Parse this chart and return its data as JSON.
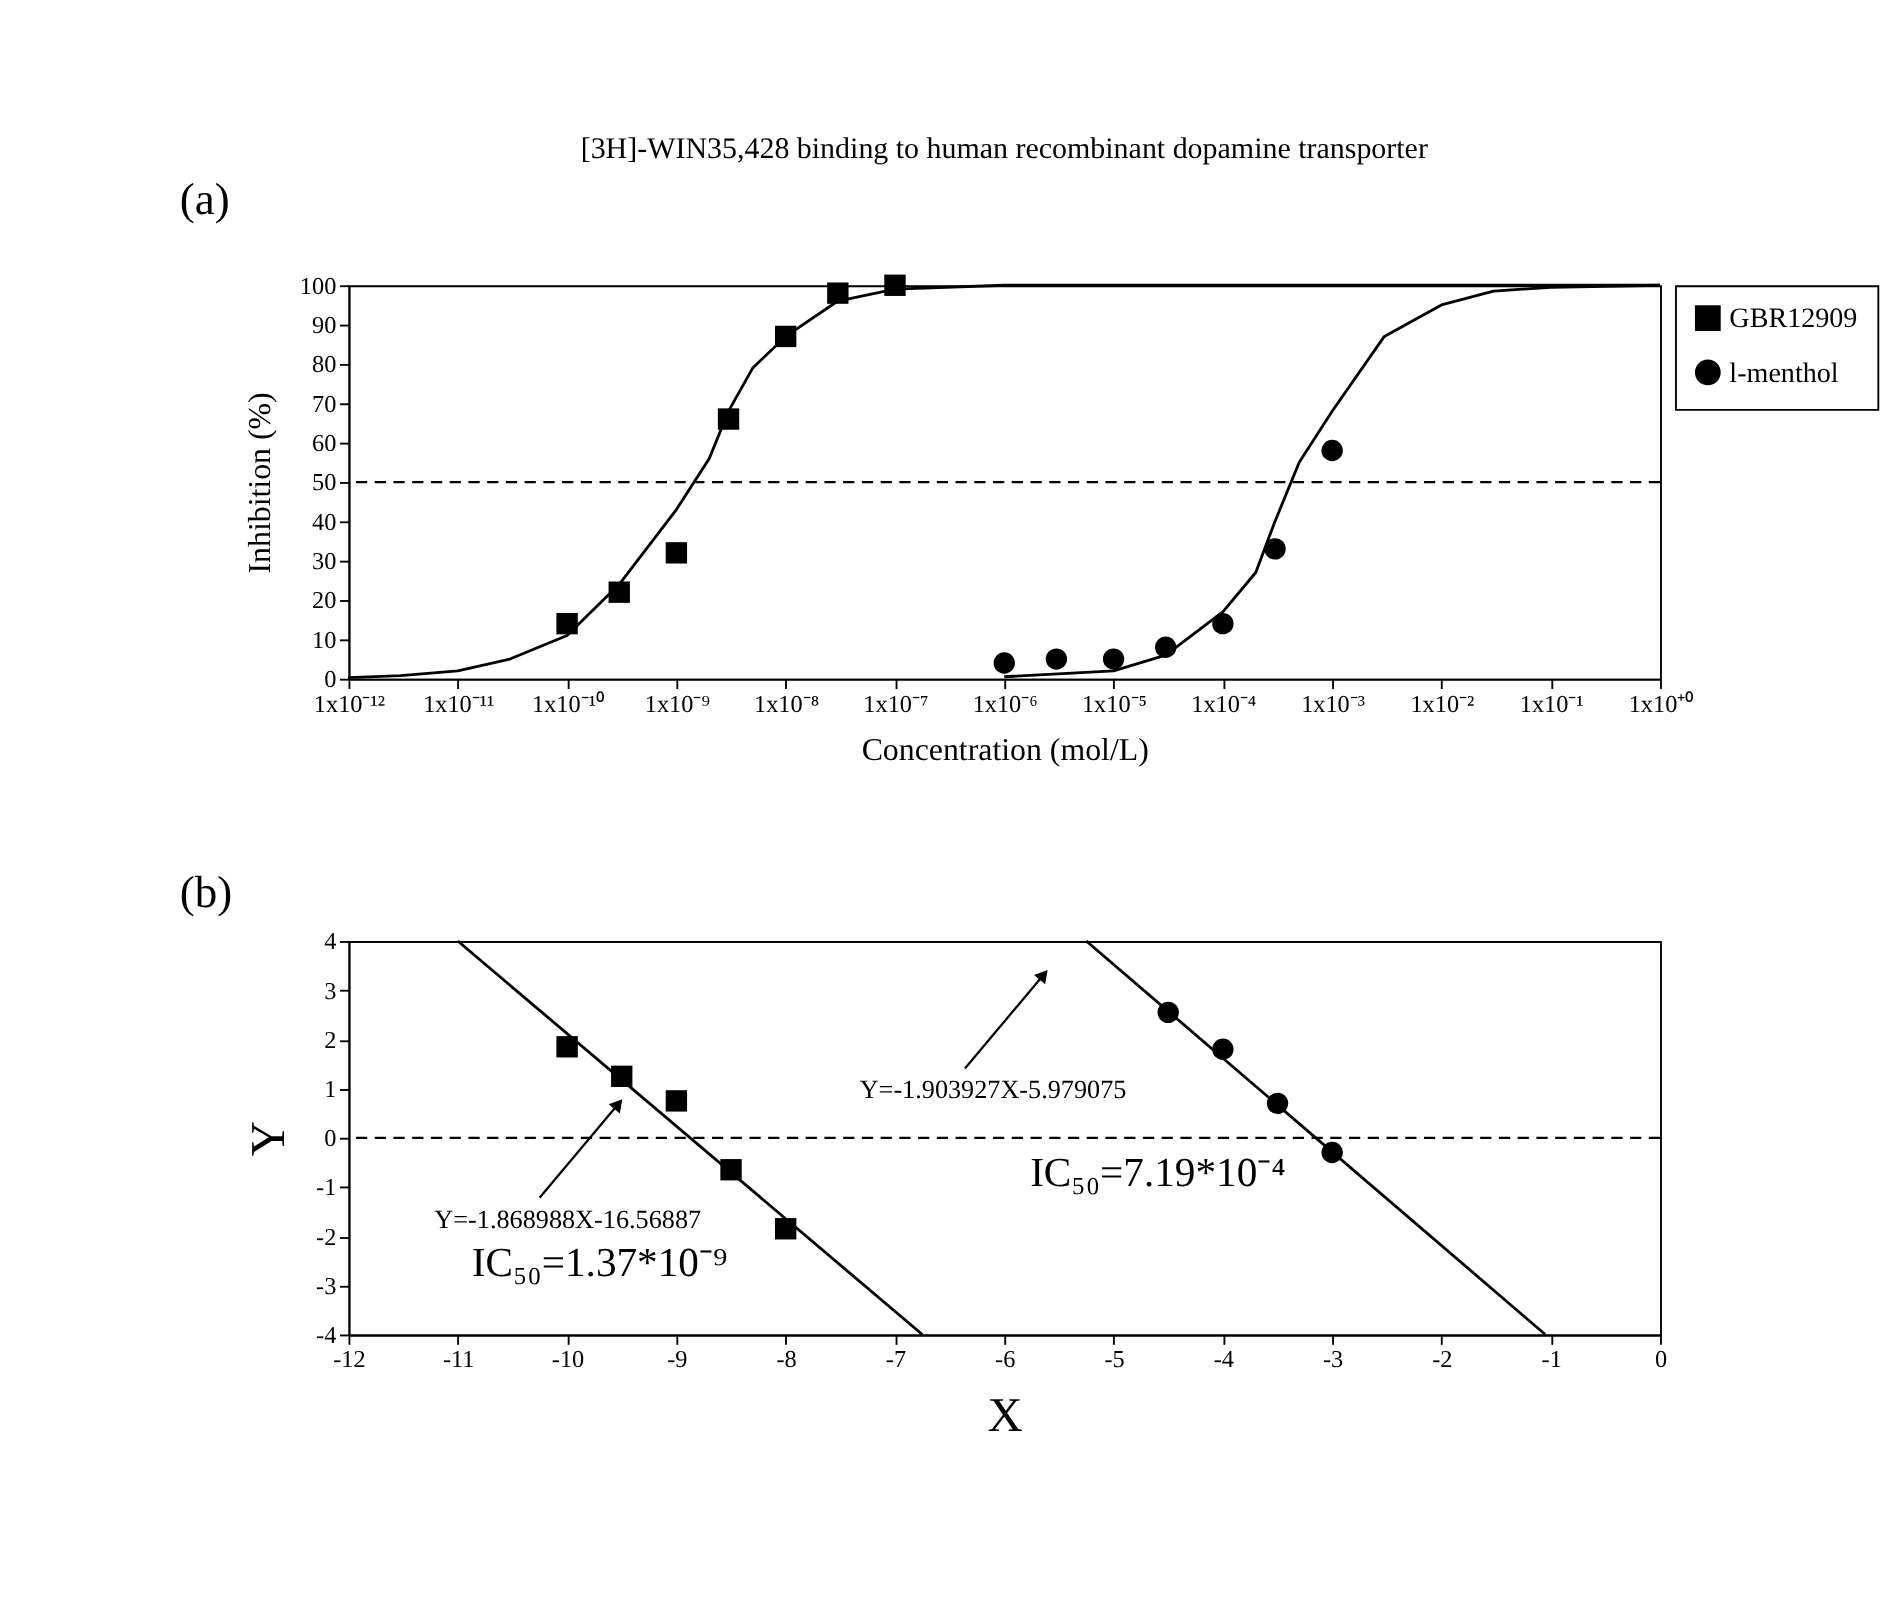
{
  "chart_data": [
    {
      "type": "scatter",
      "title": "[3H]-WIN35,428 binding to human recombinant dopamine transporter",
      "xlabel": "Concentration (mol/L)",
      "ylabel": "Inhibition (%)",
      "log": "x",
      "xlim": [
        1e-12,
        1
      ],
      "ylim": [
        0,
        100
      ],
      "xticks": [
        {
          "value": 1e-12,
          "label": "1x10⁻¹²"
        },
        {
          "value": 1e-11,
          "label": "1x10⁻¹¹"
        },
        {
          "value": 1e-10,
          "label": "1x10⁻¹⁰"
        },
        {
          "value": 1e-09,
          "label": "1x10⁻⁹"
        },
        {
          "value": 1e-08,
          "label": "1x10⁻⁸"
        },
        {
          "value": 1e-07,
          "label": "1x10⁻⁷"
        },
        {
          "value": 1e-06,
          "label": "1x10⁻⁶"
        },
        {
          "value": 1e-05,
          "label": "1x10⁻⁵"
        },
        {
          "value": 0.0001,
          "label": "1x10⁻⁴"
        },
        {
          "value": 0.001,
          "label": "1x10⁻³"
        },
        {
          "value": 0.01,
          "label": "1x10⁻²"
        },
        {
          "value": 0.1,
          "label": "1x10⁻¹"
        },
        {
          "value": 1,
          "label": "1x10⁺⁰"
        }
      ],
      "yticks": [
        0,
        10,
        20,
        30,
        40,
        50,
        60,
        70,
        80,
        90,
        100
      ],
      "grid": false,
      "legend": "top right",
      "series": [
        {
          "name": "GBR12909",
          "color": "#000000",
          "marker": "square",
          "x": [
            1e-10,
            3e-10,
            1e-09,
            3e-09,
            1e-08,
            3e-08,
            1e-07
          ],
          "values": [
            14,
            22,
            32,
            66,
            87,
            98,
            100
          ]
        },
        {
          "name": "l-menthol",
          "color": "#000000",
          "marker": "circle",
          "x": [
            1e-06,
            3e-06,
            1e-05,
            3e-05,
            0.0001,
            0.0003,
            0.001
          ],
          "values": [
            4,
            5,
            5,
            8,
            14,
            33,
            58
          ]
        },
        {
          "type": "line",
          "color": "#000000",
          "line_style": "solid",
          "x": [
            1e-12,
            3e-12,
            1e-11,
            3e-11,
            1e-10,
            3e-10,
            1e-09,
            2e-09,
            3e-09,
            5e-09,
            1e-08,
            3e-08,
            1e-07,
            1e-06,
            1
          ],
          "values": [
            0.3,
            0.8,
            2,
            5,
            11,
            24,
            43,
            56,
            68,
            79,
            87,
            96,
            99,
            100,
            100
          ]
        },
        {
          "type": "line",
          "color": "#000000",
          "line_style": "solid",
          "x": [
            1e-06,
            1e-05,
            3e-05,
            0.0001,
            0.0002,
            0.0003,
            0.0005,
            0.001,
            0.003,
            0.01,
            0.03,
            0.1,
            1
          ],
          "values": [
            0.5,
            2,
            6,
            17,
            27,
            40,
            55,
            68,
            87,
            95,
            98.5,
            99.5,
            100
          ]
        }
      ],
      "ref_lines": [
        {
          "axis": "y",
          "value": 50,
          "line_style": "dashed",
          "color": "#000000"
        }
      ],
      "annotations": [
        "(a)"
      ]
    },
    {
      "type": "scatter",
      "xlabel": "X",
      "ylabel": "Y",
      "xlim": [
        -12,
        0
      ],
      "ylim": [
        -4,
        4
      ],
      "xticks": [
        -12,
        -11,
        -10,
        -9,
        -8,
        -7,
        -6,
        -5,
        -4,
        -3,
        -2,
        -1,
        0
      ],
      "yticks": [
        -4,
        -3,
        -2,
        -1,
        0,
        1,
        2,
        3,
        4
      ],
      "grid": false,
      "legend": "top right",
      "series": [
        {
          "type": "line",
          "color": "#000000",
          "line_style": "solid",
          "x": [
            -11,
            -6.75
          ],
          "values": [
            4,
            -4
          ]
        },
        {
          "type": "line",
          "color": "#000000",
          "line_style": "solid",
          "x": [
            -5.25,
            -1.05
          ],
          "values": [
            4,
            -4
          ]
        },
        {
          "name": "GBR12909",
          "color": "#000000",
          "marker": "square",
          "x": [
            -10,
            -9.5,
            -9,
            -8.5,
            -8
          ],
          "values": [
            1.85,
            1.25,
            0.75,
            -0.65,
            -1.85
          ]
        },
        {
          "name": "l-menthol",
          "color": "#000000",
          "marker": "circle",
          "x": [
            -4.5,
            -4,
            -3.5,
            -3
          ],
          "values": [
            2.55,
            1.8,
            0.7,
            -0.3
          ]
        }
      ],
      "ref_lines": [
        {
          "axis": "y",
          "value": 0,
          "line_style": "dashed",
          "color": "#000000"
        }
      ],
      "annotations": [
        "Y=-1.868988X-16.56887",
        "Y=-1.903927X-5.979075",
        "IC₅₀=1.37*10⁻⁹",
        "IC₅₀=7.19*10⁻⁴",
        "(b)"
      ]
    }
  ]
}
